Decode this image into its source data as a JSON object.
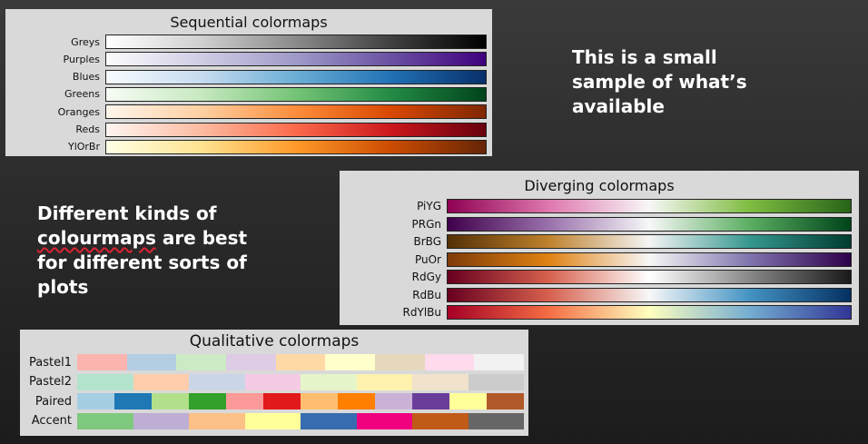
{
  "slide": {
    "note_top": "This is a small\nsample of what’s\navailable",
    "note_left_line1": "Different kinds of",
    "note_left_word2": "colourmaps",
    "note_left_line2_rest": " are best",
    "note_left_line3": "for different sorts of",
    "note_left_line4": "plots"
  },
  "sequential": {
    "title": "Sequential colormaps",
    "rows": [
      {
        "label": "Greys",
        "gradient": [
          "#ffffff",
          "#d0d0d0",
          "#8a8a8a",
          "#404040",
          "#000000"
        ]
      },
      {
        "label": "Purples",
        "gradient": [
          "#fcfbfd",
          "#cfcde4",
          "#9e9ac8",
          "#6a51a3",
          "#3f007d"
        ]
      },
      {
        "label": "Blues",
        "gradient": [
          "#f7fbff",
          "#c6dbef",
          "#6baed6",
          "#2171b5",
          "#08306b"
        ]
      },
      {
        "label": "Greens",
        "gradient": [
          "#f7fcf5",
          "#c7e9c0",
          "#74c476",
          "#238b45",
          "#00441b"
        ]
      },
      {
        "label": "Oranges",
        "gradient": [
          "#fff5eb",
          "#fdd0a2",
          "#fd8d3c",
          "#d94801",
          "#7f2704"
        ]
      },
      {
        "label": "Reds",
        "gradient": [
          "#fff5f0",
          "#fcbba1",
          "#fb6a4a",
          "#cb181d",
          "#67000d"
        ]
      },
      {
        "label": "YlOrBr",
        "gradient": [
          "#ffffe5",
          "#fee391",
          "#fe9929",
          "#cc4c02",
          "#662506"
        ]
      }
    ]
  },
  "diverging": {
    "title": "Diverging colormaps",
    "rows": [
      {
        "label": "PiYG",
        "gradient": [
          "#8e0152",
          "#de77ae",
          "#f7f7f7",
          "#7fbc41",
          "#276419"
        ]
      },
      {
        "label": "PRGn",
        "gradient": [
          "#40004b",
          "#9970ab",
          "#f7f7f7",
          "#5aae61",
          "#00441b"
        ]
      },
      {
        "label": "BrBG",
        "gradient": [
          "#543005",
          "#bf812d",
          "#f5f5f5",
          "#35978f",
          "#003c30"
        ]
      },
      {
        "label": "PuOr",
        "gradient": [
          "#7f3b08",
          "#e08214",
          "#f7f7f7",
          "#8073ac",
          "#2d004b"
        ]
      },
      {
        "label": "RdGy",
        "gradient": [
          "#67001f",
          "#d6604d",
          "#ffffff",
          "#878787",
          "#1a1a1a"
        ]
      },
      {
        "label": "RdBu",
        "gradient": [
          "#67001f",
          "#d6604d",
          "#f7f7f7",
          "#4393c3",
          "#053061"
        ]
      },
      {
        "label": "RdYlBu",
        "gradient": [
          "#a50026",
          "#f46d43",
          "#ffffbf",
          "#74add1",
          "#313695"
        ]
      }
    ]
  },
  "qualitative": {
    "title": "Qualitative colormaps",
    "rows": [
      {
        "label": "Pastel1",
        "colors": [
          "#fbb4ae",
          "#b3cde3",
          "#ccebc5",
          "#decbe4",
          "#fed9a6",
          "#ffffcc",
          "#e5d8bd",
          "#fddaec",
          "#f2f2f2"
        ]
      },
      {
        "label": "Pastel2",
        "colors": [
          "#b3e2cd",
          "#fdcdac",
          "#cbd5e8",
          "#f4cae4",
          "#e6f5c9",
          "#fff2ae",
          "#f1e2cc",
          "#cccccc"
        ]
      },
      {
        "label": "Paired",
        "colors": [
          "#a6cee3",
          "#1f78b4",
          "#b2df8a",
          "#33a02c",
          "#fb9a99",
          "#e31a1c",
          "#fdbf6f",
          "#ff7f00",
          "#cab2d6",
          "#6a3d9a",
          "#ffff99",
          "#b15928"
        ]
      },
      {
        "label": "Accent",
        "colors": [
          "#7fc97f",
          "#beaed4",
          "#fdc086",
          "#ffff99",
          "#386cb0",
          "#f0027f",
          "#bf5b17",
          "#666666"
        ]
      }
    ]
  }
}
